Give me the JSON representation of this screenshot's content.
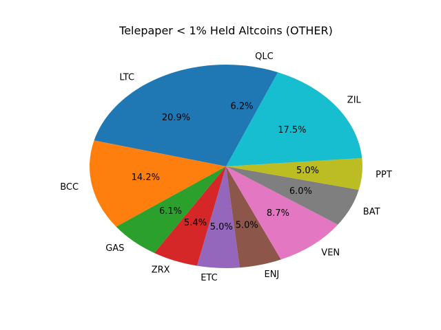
{
  "chart_data": {
    "type": "pie",
    "title": "Telepaper < 1% Held Altcoins (OTHER)",
    "slices": [
      {
        "label": "LTC",
        "value": 20.9,
        "value_label": "20.9%",
        "color": "#1f77b4"
      },
      {
        "label": "BCC",
        "value": 14.2,
        "value_label": "14.2%",
        "color": "#ff7f0e"
      },
      {
        "label": "GAS",
        "value": 6.1,
        "value_label": "6.1%",
        "color": "#2ca02c"
      },
      {
        "label": "ZRX",
        "value": 5.4,
        "value_label": "5.4%",
        "color": "#d62728"
      },
      {
        "label": "ETC",
        "value": 5.0,
        "value_label": "5.0%",
        "color": "#9467bd"
      },
      {
        "label": "ENJ",
        "value": 5.0,
        "value_label": "5.0%",
        "color": "#8c564b"
      },
      {
        "label": "VEN",
        "value": 8.7,
        "value_label": "8.7%",
        "color": "#e377c2"
      },
      {
        "label": "BAT",
        "value": 6.0,
        "value_label": "6.0%",
        "color": "#7f7f7f"
      },
      {
        "label": "PPT",
        "value": 5.0,
        "value_label": "5.0%",
        "color": "#bcbd22"
      },
      {
        "label": "ZIL",
        "value": 17.5,
        "value_label": "17.5%",
        "color": "#17becf"
      },
      {
        "label": "QLC",
        "value": 6.2,
        "value_label": "6.2%",
        "color": "#1f77b4"
      }
    ]
  }
}
